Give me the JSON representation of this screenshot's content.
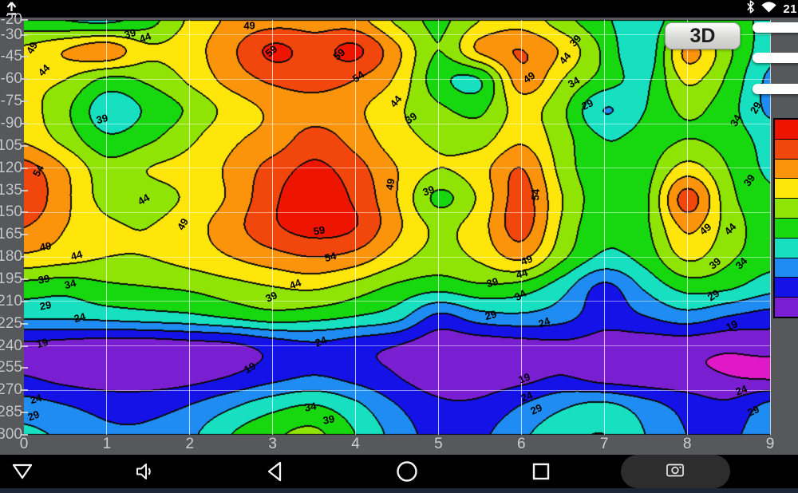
{
  "status_bar": {
    "time": "21",
    "icons": [
      "upload-icon",
      "bluetooth-icon",
      "wifi-icon"
    ]
  },
  "toolbar": {
    "threed_label": "3D"
  },
  "side_handles": {
    "count": 3
  },
  "chart_data": {
    "type": "heatmap",
    "title": "",
    "xlabel": "",
    "ylabel": "",
    "x_ticks": [
      "0",
      "1",
      "2",
      "3",
      "4",
      "5",
      "6",
      "7",
      "8",
      "9"
    ],
    "y_ticks": [
      "-20",
      "-30",
      "-45",
      "-60",
      "-75",
      "-90",
      "-105",
      "-120",
      "-135",
      "-150",
      "-165",
      "-180",
      "-195",
      "-210",
      "-225",
      "-240",
      "-255",
      "-270",
      "-285",
      "-300"
    ],
    "xlim": [
      0,
      9
    ],
    "ylim": [
      -300,
      -20
    ],
    "grid": true,
    "legend_position": "right",
    "levels": [
      14,
      19,
      24,
      29,
      34,
      39,
      44,
      49,
      54,
      59
    ],
    "band_colors": [
      "#e018c8",
      "#7a1ed2",
      "#1412e6",
      "#1e8cf2",
      "#16e0c0",
      "#17d80f",
      "#90e404",
      "#ffe60a",
      "#fb930b",
      "#f1470c",
      "#ee1500"
    ],
    "grid_values": {
      "x_min": 0,
      "x_max": 9,
      "y_top": -20,
      "y_bottom": -300,
      "values": [
        [
          36,
          34,
          33,
          37,
          45,
          50,
          52,
          52,
          51,
          43,
          38,
          44,
          47,
          41,
          35,
          31,
          38,
          36,
          33
        ],
        [
          45,
          49,
          52,
          45,
          47,
          53,
          60,
          57,
          60,
          50,
          39,
          50,
          54,
          48,
          38,
          30,
          50,
          40,
          31
        ],
        [
          45,
          44,
          38,
          40,
          45,
          51,
          55,
          56,
          54,
          48,
          36,
          34,
          52,
          44,
          37,
          33,
          45,
          38,
          28
        ],
        [
          46,
          40,
          31,
          35,
          40,
          46,
          50,
          52,
          50,
          45,
          40,
          38,
          46,
          40,
          29,
          34,
          40,
          36,
          28
        ],
        [
          48,
          42,
          35,
          38,
          43,
          48,
          51,
          56,
          52,
          46,
          43,
          42,
          48,
          41,
          34,
          36,
          39,
          37,
          32
        ],
        [
          56,
          49,
          41,
          44,
          46,
          50,
          56,
          60,
          56,
          49,
          44,
          47,
          54,
          42,
          35,
          37,
          46,
          39,
          33
        ],
        [
          58,
          50,
          42,
          42,
          45,
          50,
          58,
          62,
          58,
          49,
          38,
          45,
          56,
          44,
          36,
          38,
          56,
          41,
          35
        ],
        [
          54,
          49,
          45,
          44,
          47,
          52,
          58,
          61,
          59,
          50,
          43,
          47,
          56,
          43,
          35,
          38,
          50,
          42,
          36
        ],
        [
          48,
          46,
          44,
          44,
          46,
          49,
          52,
          54,
          52,
          46,
          42,
          45,
          50,
          40,
          33,
          36,
          45,
          40,
          36
        ],
        [
          37,
          36,
          38,
          39,
          40,
          42,
          44,
          45,
          42,
          38,
          36,
          38,
          37,
          31,
          23,
          30,
          36,
          35,
          31
        ],
        [
          30,
          30,
          31,
          32,
          33,
          35,
          37,
          36,
          34,
          31,
          23,
          27,
          28,
          26,
          21,
          24,
          27,
          24,
          22
        ],
        [
          18,
          17,
          16,
          16,
          17,
          18,
          21,
          23,
          21,
          19,
          16,
          16,
          17,
          18,
          17,
          16,
          16,
          15,
          16
        ],
        [
          19,
          17,
          16,
          16,
          17,
          19,
          22,
          24,
          22,
          19,
          16,
          16,
          17,
          19,
          16,
          15,
          15,
          14,
          13
        ],
        [
          26,
          24,
          22,
          22,
          24,
          28,
          32,
          34,
          30,
          24,
          20,
          20,
          24,
          28,
          30,
          26,
          22,
          20,
          25
        ],
        [
          30,
          28,
          25,
          25,
          28,
          34,
          38,
          40,
          34,
          27,
          22,
          23,
          28,
          32,
          34,
          29,
          24,
          23,
          27
        ]
      ]
    },
    "contour_labels": [
      {
        "t": "49",
        "x": 2.72,
        "y": -24,
        "r": 0
      },
      {
        "t": "59",
        "x": 2.98,
        "y": -41,
        "r": -40
      },
      {
        "t": "59",
        "x": 3.8,
        "y": -43,
        "r": -40
      },
      {
        "t": "54",
        "x": 4.03,
        "y": -58,
        "r": -35
      },
      {
        "t": "44",
        "x": 4.49,
        "y": -75,
        "r": -50
      },
      {
        "t": "39",
        "x": 1.28,
        "y": -29,
        "r": -15
      },
      {
        "t": "44",
        "x": 1.46,
        "y": -32,
        "r": -20
      },
      {
        "t": "49",
        "x": 0.1,
        "y": -39,
        "r": -60
      },
      {
        "t": "44",
        "x": 0.24,
        "y": -54,
        "r": -45
      },
      {
        "t": "39",
        "x": 0.94,
        "y": -87,
        "r": -15
      },
      {
        "t": "44",
        "x": 1.44,
        "y": -141,
        "r": -30
      },
      {
        "t": "54",
        "x": 0.17,
        "y": -122,
        "r": -60
      },
      {
        "t": "49",
        "x": 0.26,
        "y": -173,
        "r": -10
      },
      {
        "t": "44",
        "x": 0.64,
        "y": -179,
        "r": -15
      },
      {
        "t": "39",
        "x": 0.24,
        "y": -195,
        "r": -10
      },
      {
        "t": "34",
        "x": 0.56,
        "y": -198,
        "r": -15
      },
      {
        "t": "29",
        "x": 0.26,
        "y": -213,
        "r": -10
      },
      {
        "t": "24",
        "x": 0.67,
        "y": -221,
        "r": -15
      },
      {
        "t": "19",
        "x": 0.22,
        "y": -238,
        "r": -15
      },
      {
        "t": "19",
        "x": 2.72,
        "y": -255,
        "r": -30
      },
      {
        "t": "24",
        "x": 0.14,
        "y": -276,
        "r": -15
      },
      {
        "t": "29",
        "x": 0.12,
        "y": -287,
        "r": -20
      },
      {
        "t": "49",
        "x": 1.92,
        "y": -158,
        "r": -60
      },
      {
        "t": "59",
        "x": 3.56,
        "y": -162,
        "r": -10
      },
      {
        "t": "54",
        "x": 3.7,
        "y": -180,
        "r": -15
      },
      {
        "t": "44",
        "x": 3.27,
        "y": -198,
        "r": -20
      },
      {
        "t": "39",
        "x": 2.98,
        "y": -207,
        "r": -25
      },
      {
        "t": "24",
        "x": 3.58,
        "y": -237,
        "r": -20
      },
      {
        "t": "34",
        "x": 3.46,
        "y": -281,
        "r": -10
      },
      {
        "t": "39",
        "x": 3.68,
        "y": -290,
        "r": -10
      },
      {
        "t": "49",
        "x": 4.42,
        "y": -131,
        "r": -80
      },
      {
        "t": "39",
        "x": 4.88,
        "y": -135,
        "r": -20
      },
      {
        "t": "39",
        "x": 4.67,
        "y": -86,
        "r": -35
      },
      {
        "t": "54",
        "x": 6.17,
        "y": -138,
        "r": -85
      },
      {
        "t": "49",
        "x": 6.06,
        "y": -182,
        "r": -20
      },
      {
        "t": "44",
        "x": 6.01,
        "y": -191,
        "r": -15
      },
      {
        "t": "39",
        "x": 5.65,
        "y": -197,
        "r": -15
      },
      {
        "t": "34",
        "x": 5.99,
        "y": -206,
        "r": -30
      },
      {
        "t": "29",
        "x": 5.63,
        "y": -219,
        "r": -15
      },
      {
        "t": "24",
        "x": 6.28,
        "y": -224,
        "r": -20
      },
      {
        "t": "19",
        "x": 6.04,
        "y": -262,
        "r": -20
      },
      {
        "t": "24",
        "x": 6.06,
        "y": -274,
        "r": -20
      },
      {
        "t": "29",
        "x": 6.18,
        "y": -283,
        "r": -25
      },
      {
        "t": "39",
        "x": 6.65,
        "y": -34,
        "r": -50
      },
      {
        "t": "44",
        "x": 6.53,
        "y": -46,
        "r": -50
      },
      {
        "t": "49",
        "x": 6.09,
        "y": -59,
        "r": -35
      },
      {
        "t": "34",
        "x": 6.63,
        "y": -62,
        "r": -30
      },
      {
        "t": "29",
        "x": 6.8,
        "y": -77,
        "r": -25
      },
      {
        "t": "29",
        "x": 8.83,
        "y": -79,
        "r": -60
      },
      {
        "t": "34",
        "x": 8.59,
        "y": -88,
        "r": -60
      },
      {
        "t": "39",
        "x": 8.75,
        "y": -128,
        "r": -55
      },
      {
        "t": "49",
        "x": 8.22,
        "y": -161,
        "r": -40
      },
      {
        "t": "44",
        "x": 8.52,
        "y": -161,
        "r": -45
      },
      {
        "t": "39",
        "x": 8.34,
        "y": -184,
        "r": -40
      },
      {
        "t": "34",
        "x": 8.65,
        "y": -184,
        "r": -45
      },
      {
        "t": "29",
        "x": 8.32,
        "y": -206,
        "r": -35
      },
      {
        "t": "19",
        "x": 8.54,
        "y": -226,
        "r": -25
      },
      {
        "t": "24",
        "x": 8.65,
        "y": -270,
        "r": -20
      },
      {
        "t": "29",
        "x": 8.8,
        "y": -284,
        "r": -25
      }
    ]
  },
  "nav_bar": {
    "icons": [
      "keyboard-hide-icon",
      "volume-icon",
      "back-icon",
      "home-icon",
      "recents-icon",
      "camera-icon"
    ]
  },
  "colors": {
    "plot_background": "#57585b",
    "bar_background": "#000000",
    "bottom_strip": "#1c2637",
    "tick_text": "#c9c9cb"
  }
}
